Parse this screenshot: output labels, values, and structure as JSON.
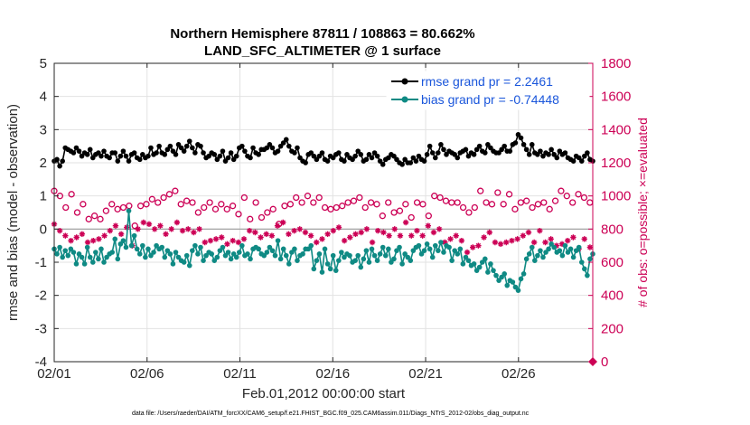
{
  "chart_data": {
    "type": "line",
    "title": "Northern Hemisphere 87811 / 108863 = 80.662%",
    "subtitle": "LAND_SFC_ALTIMETER @ 1 surface",
    "xlabel": "Feb.01,2012 00:00:00 start",
    "ylabel": "rmse and bias (model - observation)",
    "y2label": "# of obs: o=possible; ×=evaluated",
    "footnote": "data file: /Users/raeder/DAI/ATM_forcXX/CAM6_setup/f.e21.FHIST_BGC.f09_025.CAM6assim.011/Diags_NTrS_2012-02/obs_diag_output.nc",
    "x_ticks": [
      "02/01",
      "02/06",
      "02/11",
      "02/16",
      "02/21",
      "02/26"
    ],
    "x_tick_days": [
      0,
      5,
      10,
      15,
      20,
      25
    ],
    "xlim": [
      0,
      29
    ],
    "ylim": [
      -4,
      5
    ],
    "y_ticks": [
      "-4",
      "-3",
      "-2",
      "-1",
      "0",
      "1",
      "2",
      "3",
      "4",
      "5"
    ],
    "y2lim": [
      0,
      1800
    ],
    "y2_ticks": [
      "0",
      "200",
      "400",
      "600",
      "800",
      "1000",
      "1200",
      "1400",
      "1600",
      "1800"
    ],
    "grid": true,
    "legend_position": "top-right",
    "series": [
      {
        "name": "rmse grand pr = 2.2461",
        "color": "#000000",
        "axis": "left",
        "values": [
          2.05,
          2.1,
          1.9,
          2.05,
          2.45,
          2.4,
          2.35,
          2.3,
          2.45,
          2.35,
          2.2,
          2.3,
          2.25,
          2.4,
          2.15,
          2.25,
          2.3,
          2.2,
          2.35,
          2.2,
          2.15,
          2.3,
          2.3,
          2.05,
          2.2,
          2.35,
          2.2,
          2.05,
          2.25,
          2.3,
          2.15,
          2.1,
          2.25,
          2.15,
          2.2,
          2.45,
          2.25,
          2.3,
          2.5,
          2.3,
          2.25,
          2.4,
          2.5,
          2.35,
          2.25,
          2.55,
          2.45,
          2.35,
          2.5,
          2.65,
          2.45,
          2.3,
          2.55,
          2.5,
          2.3,
          2.15,
          2.2,
          2.3,
          2.25,
          2.1,
          2.2,
          2.35,
          2.05,
          2.15,
          2.3,
          2.1,
          2.2,
          2.45,
          2.5,
          2.35,
          2.2,
          2.15,
          2.45,
          2.3,
          2.25,
          2.4,
          2.4,
          2.45,
          2.55,
          2.45,
          2.3,
          2.35,
          2.5,
          2.6,
          2.7,
          2.5,
          2.35,
          2.3,
          2.45,
          2.15,
          2.05,
          2.0,
          2.25,
          2.3,
          2.2,
          2.1,
          2.2,
          2.3,
          2.1,
          2.05,
          2.2,
          2.15,
          2.25,
          2.3,
          2.1,
          2.05,
          2.25,
          2.15,
          2.1,
          2.2,
          2.35,
          2.25,
          2.05,
          2.1,
          2.25,
          2.15,
          2.3,
          2.2,
          2.05,
          1.95,
          2.1,
          2.15,
          2.25,
          2.2,
          2.1,
          2.0,
          1.95,
          2.1,
          2.0,
          2.0,
          2.15,
          2.05,
          2.2,
          2.1,
          2.05,
          2.25,
          2.5,
          2.3,
          2.15,
          2.3,
          2.55,
          2.4,
          2.25,
          2.35,
          2.3,
          2.25,
          2.15,
          2.3,
          2.35,
          2.4,
          2.2,
          2.3,
          2.25,
          2.4,
          2.5,
          2.35,
          2.3,
          2.55,
          2.45,
          2.35,
          2.3,
          2.3,
          2.4,
          2.5,
          2.35,
          2.35,
          2.55,
          2.6,
          2.85,
          2.75,
          2.55,
          2.4,
          2.25,
          2.55,
          2.3,
          2.25,
          2.35,
          2.2,
          2.3,
          2.25,
          2.4,
          2.25,
          2.15,
          2.35,
          2.25,
          2.3,
          2.15,
          2.1,
          2.05,
          2.2,
          2.15,
          2.05,
          2.2,
          2.3,
          2.1,
          2.05
        ]
      },
      {
        "name": "bias grand pr = -0.74448",
        "color": "#0f8a84",
        "axis": "left",
        "values": [
          -0.6,
          -0.75,
          -0.55,
          -0.85,
          -0.65,
          -0.8,
          -0.6,
          -0.7,
          -1.05,
          -0.75,
          -0.85,
          -1.05,
          -0.55,
          -0.85,
          -1.0,
          -0.7,
          -0.9,
          -0.6,
          -1.0,
          -0.85,
          -0.75,
          -0.7,
          -0.3,
          -0.9,
          -0.45,
          -0.35,
          -0.55,
          0.55,
          -0.5,
          -0.2,
          -0.6,
          -0.75,
          -0.5,
          -0.85,
          -0.6,
          -0.8,
          -0.7,
          -0.5,
          -0.6,
          -0.55,
          -0.85,
          -0.65,
          -0.75,
          -1.05,
          -0.7,
          -0.85,
          -0.95,
          -1.0,
          -0.8,
          -1.1,
          -0.65,
          -0.5,
          -0.75,
          -0.55,
          -0.95,
          -0.8,
          -0.7,
          -0.75,
          -0.95,
          -0.85,
          -0.65,
          -0.55,
          -0.8,
          -0.7,
          -0.9,
          -0.75,
          -0.85,
          -0.7,
          -0.5,
          -0.8,
          -0.75,
          -0.9,
          -0.6,
          -0.55,
          -0.6,
          -0.75,
          -0.8,
          -0.7,
          -0.55,
          -0.65,
          -0.8,
          -0.35,
          -0.9,
          -0.6,
          -0.8,
          -1.05,
          -0.7,
          -0.6,
          -0.95,
          -0.8,
          -0.75,
          -0.6,
          -0.6,
          -0.5,
          -1.2,
          -0.95,
          -0.75,
          -1.3,
          -0.6,
          -1.05,
          -1.2,
          -0.8,
          -1.25,
          -0.95,
          -0.7,
          -0.85,
          -0.75,
          -0.8,
          -1.0,
          -0.95,
          -0.8,
          -1.15,
          -0.9,
          -0.65,
          -1.0,
          -0.6,
          -0.8,
          -0.95,
          -0.75,
          -0.55,
          -0.8,
          -0.6,
          -1.0,
          -0.9,
          -0.65,
          -0.55,
          -1.05,
          -0.75,
          -0.85,
          -0.95,
          -0.65,
          -0.55,
          -0.5,
          -0.75,
          -0.65,
          -0.45,
          -0.6,
          -0.85,
          -0.5,
          -0.65,
          -0.4,
          -0.7,
          -0.5,
          -0.55,
          -0.95,
          -0.65,
          -0.75,
          -0.6,
          -1.05,
          -0.85,
          -0.95,
          -1.1,
          -1.05,
          -1.25,
          -1.15,
          -1.0,
          -0.9,
          -1.3,
          -1.05,
          -1.25,
          -1.4,
          -1.55,
          -1.45,
          -1.35,
          -1.7,
          -1.55,
          -1.6,
          -1.75,
          -1.85,
          -1.5,
          -1.35,
          -0.9,
          -0.75,
          -0.55,
          -0.95,
          -0.8,
          -0.65,
          -0.85,
          -0.7,
          -0.6,
          -0.45,
          -0.55,
          -0.7,
          -0.65,
          -0.8,
          -0.5,
          -0.7,
          -0.6,
          -0.85,
          -0.65,
          -0.55,
          -1.0,
          -1.2,
          -1.4,
          -0.9,
          -0.75
        ]
      },
      {
        "name": "possible",
        "color": "#cc0055",
        "axis": "right",
        "marker": "o",
        "values": [
          1030,
          980,
          1000,
          960,
          930,
          880,
          1010,
          970,
          900,
          990,
          950,
          920,
          860,
          930,
          880,
          920,
          860,
          960,
          910,
          880,
          950,
          990,
          920,
          870,
          930,
          1000,
          940,
          880,
          820,
          870,
          940,
          860,
          950,
          900,
          980,
          1020,
          960,
          1040,
          990,
          930,
          1010,
          970,
          1030,
          1000,
          950,
          1000,
          970,
          1030,
          960,
          1010,
          900,
          990,
          930,
          860,
          960,
          990,
          920,
          1000,
          950,
          870,
          920,
          880,
          940,
          860,
          890,
          950,
          990,
          910,
          860,
          930,
          960,
          890,
          870,
          950,
          900,
          860,
          920,
          880,
          830,
          900,
          940,
          880,
          950,
          910,
          990,
          1000,
          960,
          950,
          1000,
          980,
          960,
          1040,
          990,
          950,
          930,
          880,
          920,
          960,
          930,
          880,
          940,
          1000,
          960,
          1000,
          970,
          920,
          990,
          960,
          930,
          1020,
          960,
          920,
          950,
          900,
          880,
          920,
          960,
          940,
          900,
          870,
          910,
          880,
          950,
          900,
          870,
          910,
          960,
          900,
          950,
          920,
          880,
          930,
          1000,
          960,
          990,
          1030,
          970,
          1000,
          960,
          920,
          960,
          880,
          930,
          950,
          900,
          860,
          930,
          970,
          1030,
          1000,
          960,
          900,
          950,
          990,
          1020,
          980,
          950,
          1000,
          1010,
          960,
          920,
          870,
          960,
          1000,
          970,
          880,
          930,
          990,
          950,
          910,
          960,
          940,
          920,
          1000,
          970,
          960,
          1030,
          980,
          1000,
          990,
          960,
          980,
          1010,
          950,
          990,
          1000,
          960,
          900
        ]
      },
      {
        "name": "evaluated",
        "color": "#cc0055",
        "axis": "right",
        "marker": "*",
        "values": [
          830,
          850,
          790,
          840,
          760,
          790,
          730,
          780,
          750,
          810,
          770,
          740,
          720,
          760,
          730,
          780,
          740,
          810,
          760,
          700,
          790,
          760,
          820,
          730,
          770,
          740,
          810,
          780,
          700,
          750,
          800,
          760,
          840,
          790,
          830,
          760,
          800,
          840,
          820,
          780,
          770,
          830,
          800,
          770,
          840,
          820,
          790,
          760,
          800,
          830,
          780,
          740,
          800,
          770,
          720,
          760,
          730,
          780,
          740,
          700,
          750,
          790,
          710,
          770,
          730,
          760,
          720,
          790,
          740,
          760,
          790,
          720,
          780,
          800,
          750,
          820,
          770,
          800,
          760,
          780,
          820,
          790,
          840,
          800,
          770,
          820,
          790,
          760,
          800,
          830,
          780,
          740,
          760,
          790,
          720,
          760,
          740,
          800,
          770,
          720,
          790,
          760,
          810,
          780,
          730,
          790,
          750,
          800,
          770,
          730,
          780,
          740,
          800,
          760,
          720,
          750,
          790,
          740,
          780,
          830,
          760,
          720,
          800,
          820,
          760,
          790,
          840,
          780,
          760,
          820,
          790,
          810,
          760,
          790,
          820,
          750,
          780,
          740,
          800,
          760,
          720,
          770,
          740,
          800,
          760,
          700,
          730,
          680,
          660,
          640,
          690,
          650,
          700,
          720,
          750,
          700,
          780,
          740,
          720,
          760,
          710,
          680,
          720,
          770,
          730,
          780,
          740,
          800,
          760,
          720,
          780,
          750,
          720,
          760,
          790,
          740,
          720,
          770,
          740,
          720,
          700,
          740,
          710,
          690,
          730,
          700,
          750,
          720,
          680,
          700,
          740,
          720,
          690,
          700
        ]
      }
    ]
  }
}
